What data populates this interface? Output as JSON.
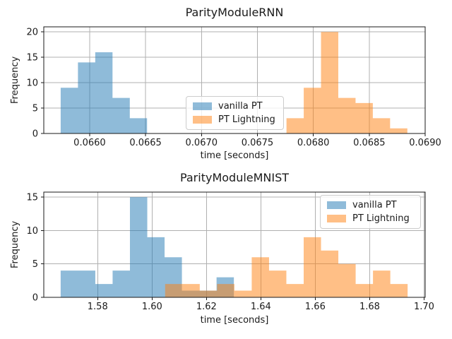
{
  "figure": {
    "background": "#ffffff",
    "grid_color": "#b0b0b0",
    "spine_color": "#1a1a1a"
  },
  "chart_data": [
    {
      "id": "rnn",
      "type": "histogram",
      "title": "ParityModuleRNN",
      "xlabel": "time [seconds]",
      "ylabel": "Frequency",
      "xlim": [
        0.06559,
        0.069
      ],
      "ylim": [
        0,
        21
      ],
      "xtick_values": [
        0.066,
        0.0665,
        0.067,
        0.0675,
        0.068,
        0.0685,
        0.069
      ],
      "xtick_labels": [
        "0.0660",
        "0.0665",
        "0.0670",
        "0.0675",
        "0.0680",
        "0.0685",
        "0.0690"
      ],
      "ytick_values": [
        0,
        5,
        10,
        15,
        20
      ],
      "ytick_labels": [
        "0",
        "5",
        "10",
        "15",
        "20"
      ],
      "grid": true,
      "legend_location": "center",
      "series": [
        {
          "name": "vanilla PT",
          "color": "#1f77b4",
          "alpha": 0.5,
          "bin_start": 0.065741,
          "bin_width": 0.0001545,
          "counts": [
            9,
            14,
            16,
            7,
            3
          ]
        },
        {
          "name": "PT Lightning",
          "color": "#ff7f0e",
          "alpha": 0.5,
          "bin_start": 0.06776,
          "bin_width": 0.0001544,
          "counts": [
            3,
            9,
            20,
            7,
            6,
            3,
            1
          ]
        }
      ]
    },
    {
      "id": "mnist",
      "type": "histogram",
      "title": "ParityModuleMNIST",
      "xlabel": "time [seconds]",
      "ylabel": "Frequency",
      "xlim": [
        1.5602,
        1.7004
      ],
      "ylim": [
        0,
        15.75
      ],
      "xtick_values": [
        1.58,
        1.6,
        1.62,
        1.64,
        1.66,
        1.68,
        1.7
      ],
      "xtick_labels": [
        "1.58",
        "1.60",
        "1.62",
        "1.64",
        "1.66",
        "1.68",
        "1.70"
      ],
      "ytick_values": [
        0,
        5,
        10,
        15
      ],
      "ytick_labels": [
        "0",
        "5",
        "10",
        "15"
      ],
      "grid": true,
      "legend_location": "upper right",
      "series": [
        {
          "name": "vanilla PT",
          "color": "#1f77b4",
          "alpha": 0.5,
          "bin_start": 1.5664,
          "bin_width": 0.006368,
          "counts": [
            4,
            4,
            2,
            4,
            15,
            9,
            6,
            1,
            1,
            3
          ]
        },
        {
          "name": "PT Lightning",
          "color": "#ff7f0e",
          "alpha": 0.5,
          "bin_start": 1.6048,
          "bin_width": 0.006368,
          "counts": [
            2,
            2,
            1,
            2,
            1,
            6,
            4,
            2,
            9,
            7,
            5,
            2,
            4,
            2
          ]
        }
      ]
    }
  ]
}
